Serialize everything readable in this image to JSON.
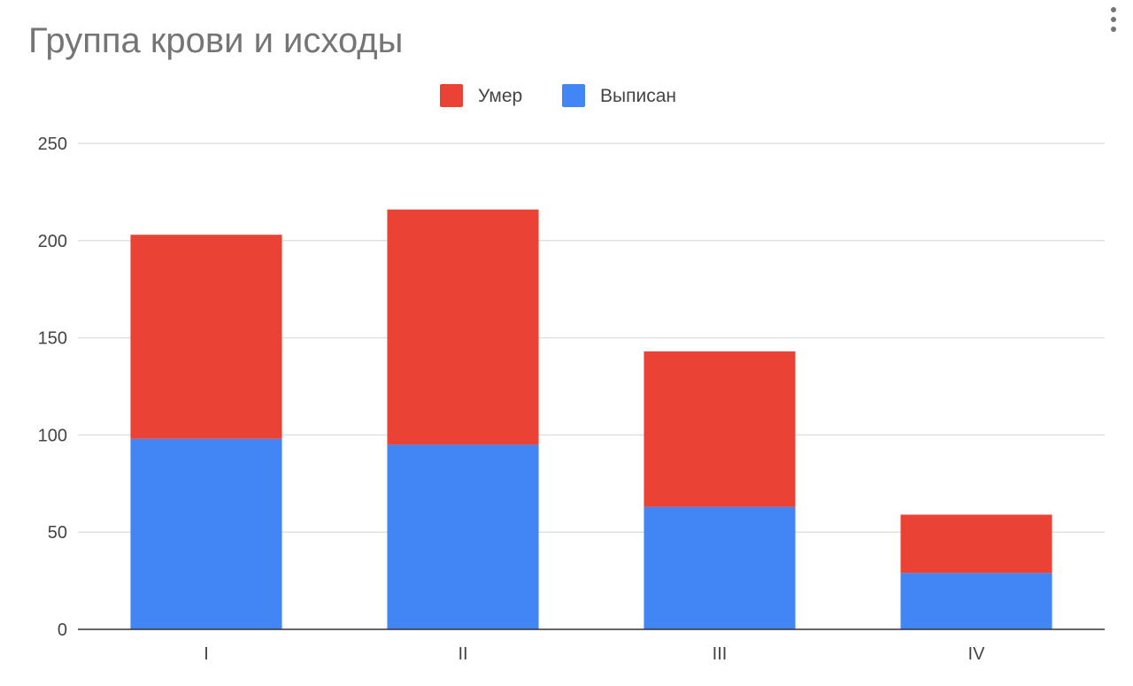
{
  "chart_data": {
    "type": "bar",
    "stacked": true,
    "title": "Группа крови и исходы",
    "categories": [
      "I",
      "II",
      "III",
      "IV"
    ],
    "series": [
      {
        "name": "Выписан",
        "color": "#4285f4",
        "values": [
          98,
          95,
          63,
          29
        ]
      },
      {
        "name": "Умер",
        "color": "#ea4335",
        "values": [
          105,
          121,
          80,
          30
        ]
      }
    ],
    "legend_order": [
      "Умер",
      "Выписан"
    ],
    "ylim": [
      0,
      250
    ],
    "yticks": [
      0,
      50,
      100,
      150,
      200,
      250
    ],
    "grid": true,
    "legend_position": "top"
  },
  "menu_icon": "more-vert-icon"
}
